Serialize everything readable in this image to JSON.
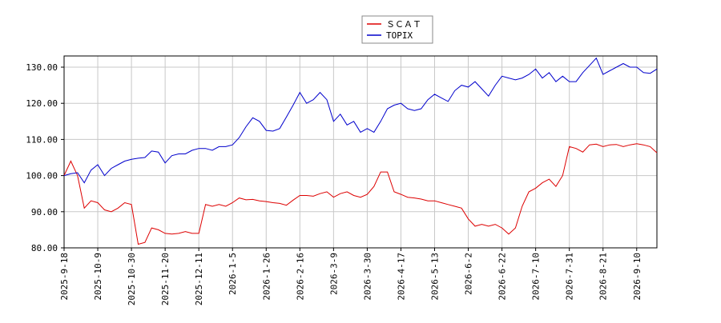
{
  "chart_data": {
    "type": "line",
    "legend": "upper center",
    "grid": true,
    "ylim": [
      80,
      133.1
    ],
    "yticks": [
      {
        "value": 80,
        "label": "80.00"
      },
      {
        "value": 90,
        "label": "90.00"
      },
      {
        "value": 100,
        "label": "100.00"
      },
      {
        "value": 110,
        "label": "110.00"
      },
      {
        "value": 120,
        "label": "120.00"
      },
      {
        "value": 130,
        "label": "130.00"
      }
    ],
    "categories": [
      "2025-9-18",
      null,
      null,
      null,
      null,
      "2025-10-9",
      null,
      null,
      null,
      null,
      "2025-10-30",
      null,
      null,
      null,
      null,
      "2025-11-20",
      null,
      null,
      null,
      null,
      "2025-12-11",
      null,
      null,
      null,
      null,
      "2026-1-5",
      null,
      null,
      null,
      null,
      "2026-1-26",
      null,
      null,
      null,
      null,
      "2026-2-16",
      null,
      null,
      null,
      null,
      "2026-3-9",
      null,
      null,
      null,
      null,
      "2026-3-30",
      null,
      null,
      null,
      null,
      "2026-4-17",
      null,
      null,
      null,
      null,
      "2026-5-13",
      null,
      null,
      null,
      null,
      "2026-6-2",
      null,
      null,
      null,
      null,
      "2026-6-22",
      null,
      null,
      null,
      null,
      "2026-7-10",
      null,
      null,
      null,
      null,
      "2026-7-31",
      null,
      null,
      null,
      null,
      "2026-8-21",
      null,
      null,
      null,
      null,
      "2026-9-10",
      null,
      null,
      null
    ],
    "series": [
      {
        "name": "ＳＣＡＴ",
        "color": "#dd0000",
        "values": [
          100,
          104,
          100,
          91,
          93,
          92.5,
          90.5,
          90,
          91,
          92.5,
          92,
          81,
          81.5,
          85.5,
          85,
          84,
          83.8,
          84,
          84.5,
          84,
          84,
          92,
          91.5,
          92,
          91.5,
          92.5,
          93.8,
          93.3,
          93.4,
          93,
          92.8,
          92.5,
          92.3,
          91.8,
          93.2,
          94.5,
          94.5,
          94.3,
          95,
          95.5,
          94,
          95,
          95.5,
          94.5,
          94,
          94.8,
          97,
          101,
          101,
          95.5,
          94.8,
          94,
          93.8,
          93.5,
          93,
          93,
          92.5,
          92,
          91.5,
          91,
          88,
          86,
          86.5,
          86,
          86.5,
          85.5,
          83.8,
          85.5,
          91.5,
          95.5,
          96.5,
          98,
          99,
          97,
          100,
          108,
          107.5,
          106.5,
          108.5,
          108.7,
          108,
          108.5,
          108.6,
          108,
          108.5,
          108.8,
          108.5,
          108,
          106.3
        ]
      },
      {
        "name": "TOPIX",
        "color": "#0000cc",
        "values": [
          100,
          100.5,
          100.8,
          98,
          101.5,
          103,
          100,
          102,
          103,
          104,
          104.5,
          104.8,
          105,
          106.8,
          106.5,
          103.5,
          105.5,
          106,
          106,
          107,
          107.5,
          107.5,
          107,
          108,
          108,
          108.5,
          110.5,
          113.5,
          116,
          115,
          112.5,
          112.3,
          113,
          116.2,
          119.5,
          123,
          120,
          121,
          123,
          121,
          115,
          117,
          114,
          115,
          112,
          113,
          112,
          115,
          118.5,
          119.5,
          120,
          118.5,
          118,
          118.5,
          121,
          122.5,
          121.5,
          120.5,
          123.5,
          125,
          124.5,
          126,
          124,
          122,
          125,
          127.5,
          127,
          126.5,
          127,
          128,
          129.5,
          127,
          128.5,
          126,
          127.5,
          126,
          126,
          128.5,
          130.5,
          132.5,
          128,
          129,
          130,
          131,
          130,
          130,
          128.5,
          128.3,
          129.5
        ]
      }
    ]
  }
}
